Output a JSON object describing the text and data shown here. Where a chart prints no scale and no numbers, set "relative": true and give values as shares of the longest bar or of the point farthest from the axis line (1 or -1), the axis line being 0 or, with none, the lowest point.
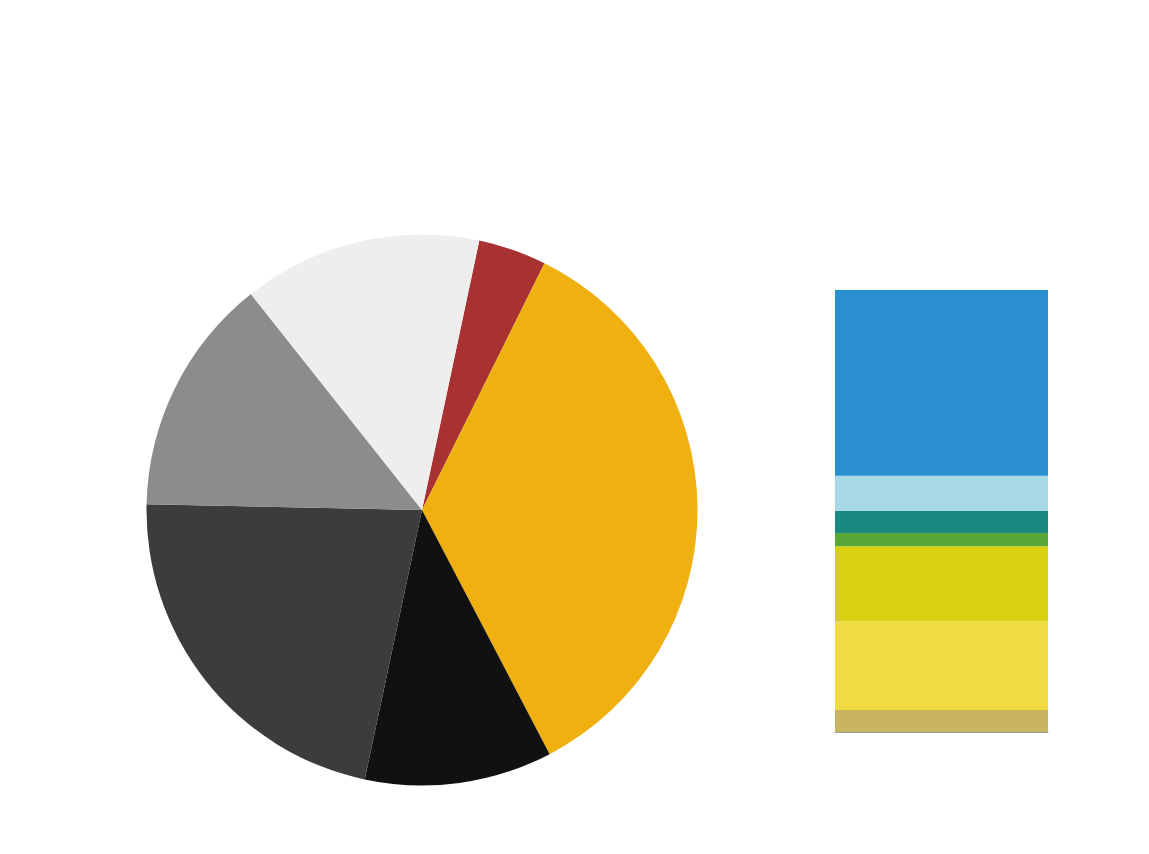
{
  "chart_data": [
    {
      "type": "pie",
      "categories": [
        null,
        null,
        null,
        null,
        null,
        null
      ],
      "values": [
        4,
        35,
        11,
        22,
        14,
        14
      ],
      "colors": [
        "#a83232",
        "#f0b010",
        "#111111",
        "#3c3c3e",
        "#8c8c8c",
        "#eeeeee"
      ]
    },
    {
      "type": "bar",
      "stacked": true,
      "relative": true,
      "categories": [
        null
      ],
      "series": [
        {
          "color": "#c8b460",
          "values": [
            0.05
          ]
        },
        {
          "color": "#f0dc40",
          "values": [
            0.2
          ]
        },
        {
          "color": "#d8d010",
          "values": [
            0.17
          ]
        },
        {
          "color": "#58a838",
          "values": [
            0.03
          ]
        },
        {
          "color": "#1a8a80",
          "values": [
            0.05
          ]
        },
        {
          "color": "#a8d8e8",
          "values": [
            0.08
          ]
        },
        {
          "color": "#2a90d0",
          "values": [
            0.42
          ]
        }
      ]
    }
  ]
}
